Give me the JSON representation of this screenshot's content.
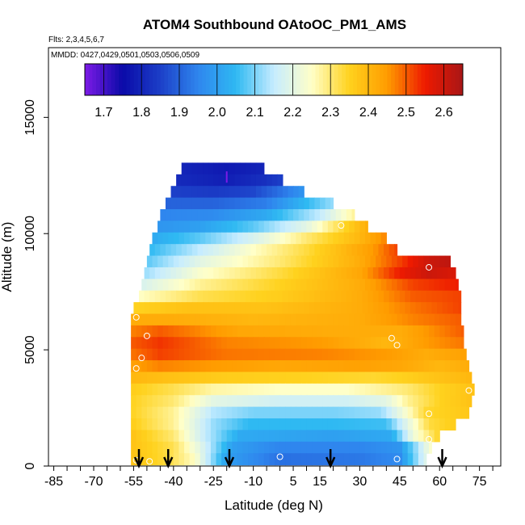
{
  "chart_data": {
    "type": "heatmap",
    "title": "ATOM4 Southbound OAtoOC_PM1_AMS",
    "flights_label": "Flts: 2,3,4,5,6,7",
    "dates_label": "MMDD: 0427,0429,0501,0503,0506,0509",
    "xlabel": "Latitude (deg N)",
    "ylabel": "Altitude (m)",
    "xlim": [
      -87,
      83
    ],
    "ylim": [
      0,
      18000
    ],
    "x_ticks": [
      -85,
      -70,
      -55,
      -40,
      -25,
      -10,
      5,
      15,
      30,
      45,
      60,
      75
    ],
    "x_tick_labels": [
      "-85",
      "-70",
      "-55",
      "-40",
      "-25",
      "-10",
      "5",
      "15",
      "30",
      "45",
      "60",
      "75"
    ],
    "y_ticks": [
      0,
      5000,
      10000,
      15000
    ],
    "y_tick_labels": [
      "0",
      "5000",
      "10000",
      "15000"
    ],
    "colorbar": {
      "min": 1.65,
      "max": 2.65,
      "ticks": [
        1.7,
        1.8,
        1.9,
        2.0,
        2.1,
        2.2,
        2.3,
        2.4,
        2.5,
        2.6
      ],
      "tick_labels": [
        "1.7",
        "1.8",
        "1.9",
        "2.0",
        "2.1",
        "2.2",
        "2.3",
        "2.4",
        "2.5",
        "2.6"
      ],
      "colors": [
        "#7d1be6",
        "#0a0aa8",
        "#1c3fc8",
        "#2f86ee",
        "#2fb9f2",
        "#c6ecff",
        "#ffffc8",
        "#ffd21e",
        "#ff9c00",
        "#ee1a00",
        "#a81616"
      ]
    },
    "rows": [
      {
        "alt": 12800,
        "lat_range": [
          -37,
          -6
        ],
        "values": [
          [
            -37,
            1.8
          ],
          [
            -20,
            1.78
          ],
          [
            -6,
            1.8
          ]
        ]
      },
      {
        "alt": 12300,
        "lat_range": [
          -39,
          1
        ],
        "values": [
          [
            -39,
            1.81
          ],
          [
            -20,
            1.79
          ],
          [
            -6,
            1.82
          ],
          [
            1,
            1.85
          ]
        ]
      },
      {
        "alt": 11800,
        "lat_range": [
          -41,
          9
        ],
        "values": [
          [
            -41,
            1.85
          ],
          [
            -25,
            1.84
          ],
          [
            -10,
            1.86
          ],
          [
            0,
            1.92
          ],
          [
            9,
            1.98
          ]
        ]
      },
      {
        "alt": 11300,
        "lat_range": [
          -43,
          20
        ],
        "values": [
          [
            -43,
            1.9
          ],
          [
            -25,
            1.9
          ],
          [
            -5,
            1.94
          ],
          [
            10,
            2.05
          ],
          [
            20,
            2.12
          ]
        ]
      },
      {
        "alt": 10800,
        "lat_range": [
          -45,
          28
        ],
        "values": [
          [
            -45,
            1.95
          ],
          [
            -25,
            1.96
          ],
          [
            -5,
            2.02
          ],
          [
            15,
            2.15
          ],
          [
            28,
            2.28
          ]
        ]
      },
      {
        "alt": 10300,
        "lat_range": [
          -46,
          33
        ],
        "values": [
          [
            -46,
            1.98
          ],
          [
            -30,
            2.0
          ],
          [
            -10,
            2.08
          ],
          [
            10,
            2.2
          ],
          [
            25,
            2.35
          ],
          [
            33,
            2.42
          ]
        ]
      },
      {
        "alt": 9800,
        "lat_range": [
          -48,
          40
        ],
        "values": [
          [
            -48,
            2.02
          ],
          [
            -30,
            2.08
          ],
          [
            -10,
            2.18
          ],
          [
            10,
            2.3
          ],
          [
            30,
            2.4
          ],
          [
            40,
            2.47
          ]
        ]
      },
      {
        "alt": 9300,
        "lat_range": [
          -49,
          44
        ],
        "values": [
          [
            -49,
            2.05
          ],
          [
            -30,
            2.15
          ],
          [
            -10,
            2.25
          ],
          [
            10,
            2.33
          ],
          [
            35,
            2.45
          ],
          [
            44,
            2.52
          ]
        ]
      },
      {
        "alt": 8800,
        "lat_range": [
          -50,
          64
        ],
        "values": [
          [
            -50,
            2.08
          ],
          [
            -30,
            2.2
          ],
          [
            0,
            2.3
          ],
          [
            30,
            2.42
          ],
          [
            45,
            2.52
          ],
          [
            56,
            2.6
          ],
          [
            64,
            2.62
          ]
        ]
      },
      {
        "alt": 8300,
        "lat_range": [
          -51,
          66
        ],
        "values": [
          [
            -51,
            2.12
          ],
          [
            -30,
            2.24
          ],
          [
            0,
            2.33
          ],
          [
            30,
            2.43
          ],
          [
            45,
            2.55
          ],
          [
            56,
            2.6
          ],
          [
            66,
            2.58
          ]
        ]
      },
      {
        "alt": 7800,
        "lat_range": [
          -52,
          67
        ],
        "values": [
          [
            -52,
            2.18
          ],
          [
            -30,
            2.28
          ],
          [
            0,
            2.35
          ],
          [
            30,
            2.42
          ],
          [
            50,
            2.52
          ],
          [
            67,
            2.55
          ]
        ]
      },
      {
        "alt": 7300,
        "lat_range": [
          -53,
          68
        ],
        "values": [
          [
            -53,
            2.25
          ],
          [
            -30,
            2.32
          ],
          [
            0,
            2.36
          ],
          [
            30,
            2.42
          ],
          [
            50,
            2.5
          ],
          [
            68,
            2.52
          ]
        ]
      },
      {
        "alt": 6800,
        "lat_range": [
          -55,
          68
        ],
        "values": [
          [
            -55,
            2.35
          ],
          [
            -35,
            2.38
          ],
          [
            -5,
            2.38
          ],
          [
            30,
            2.42
          ],
          [
            50,
            2.48
          ],
          [
            68,
            2.52
          ]
        ]
      },
      {
        "alt": 6300,
        "lat_range": [
          -56,
          68
        ],
        "values": [
          [
            -56,
            2.42
          ],
          [
            -40,
            2.42
          ],
          [
            -10,
            2.4
          ],
          [
            30,
            2.42
          ],
          [
            50,
            2.47
          ],
          [
            68,
            2.5
          ]
        ]
      },
      {
        "alt": 5800,
        "lat_range": [
          -56,
          69
        ],
        "values": [
          [
            -56,
            2.47
          ],
          [
            -45,
            2.5
          ],
          [
            -15,
            2.43
          ],
          [
            20,
            2.42
          ],
          [
            45,
            2.42
          ],
          [
            60,
            2.47
          ],
          [
            69,
            2.5
          ]
        ]
      },
      {
        "alt": 5300,
        "lat_range": [
          -56,
          69
        ],
        "values": [
          [
            -56,
            2.5
          ],
          [
            -45,
            2.53
          ],
          [
            -20,
            2.47
          ],
          [
            15,
            2.45
          ],
          [
            40,
            2.4
          ],
          [
            55,
            2.45
          ],
          [
            69,
            2.48
          ]
        ]
      },
      {
        "alt": 4800,
        "lat_range": [
          -56,
          70
        ],
        "values": [
          [
            -56,
            2.48
          ],
          [
            -45,
            2.52
          ],
          [
            -20,
            2.48
          ],
          [
            15,
            2.47
          ],
          [
            40,
            2.45
          ],
          [
            55,
            2.42
          ],
          [
            70,
            2.44
          ]
        ]
      },
      {
        "alt": 4300,
        "lat_range": [
          -56,
          71
        ],
        "values": [
          [
            -56,
            2.44
          ],
          [
            -45,
            2.47
          ],
          [
            -25,
            2.45
          ],
          [
            0,
            2.43
          ],
          [
            30,
            2.44
          ],
          [
            45,
            2.43
          ],
          [
            60,
            2.4
          ],
          [
            71,
            2.42
          ]
        ]
      },
      {
        "alt": 3800,
        "lat_range": [
          -56,
          72
        ],
        "values": [
          [
            -56,
            2.4
          ],
          [
            -40,
            2.38
          ],
          [
            -20,
            2.36
          ],
          [
            10,
            2.35
          ],
          [
            35,
            2.34
          ],
          [
            45,
            2.35
          ],
          [
            60,
            2.38
          ],
          [
            72,
            2.4
          ]
        ]
      },
      {
        "alt": 3300,
        "lat_range": [
          -56,
          73
        ],
        "values": [
          [
            -56,
            2.36
          ],
          [
            -40,
            2.32
          ],
          [
            -25,
            2.27
          ],
          [
            0,
            2.25
          ],
          [
            25,
            2.25
          ],
          [
            40,
            2.28
          ],
          [
            48,
            2.3
          ],
          [
            60,
            2.35
          ],
          [
            73,
            2.38
          ]
        ]
      },
      {
        "alt": 2800,
        "lat_range": [
          -56,
          72
        ],
        "values": [
          [
            -56,
            2.35
          ],
          [
            -40,
            2.3
          ],
          [
            -25,
            2.2
          ],
          [
            0,
            2.17
          ],
          [
            25,
            2.17
          ],
          [
            40,
            2.2
          ],
          [
            48,
            2.28
          ],
          [
            60,
            2.35
          ],
          [
            72,
            2.38
          ]
        ]
      },
      {
        "alt": 2300,
        "lat_range": [
          -56,
          71
        ],
        "values": [
          [
            -56,
            2.35
          ],
          [
            -40,
            2.28
          ],
          [
            -25,
            2.14
          ],
          [
            -10,
            2.1
          ],
          [
            20,
            2.1
          ],
          [
            38,
            2.12
          ],
          [
            46,
            2.22
          ],
          [
            55,
            2.34
          ],
          [
            71,
            2.37
          ]
        ]
      },
      {
        "alt": 1800,
        "lat_range": [
          -56,
          66
        ],
        "values": [
          [
            -56,
            2.36
          ],
          [
            -40,
            2.28
          ],
          [
            -25,
            2.12
          ],
          [
            -12,
            2.05
          ],
          [
            20,
            2.05
          ],
          [
            40,
            2.06
          ],
          [
            48,
            2.2
          ],
          [
            56,
            2.33
          ],
          [
            66,
            2.36
          ]
        ]
      },
      {
        "alt": 1300,
        "lat_range": [
          -56,
          60
        ],
        "values": [
          [
            -56,
            2.38
          ],
          [
            -40,
            2.3
          ],
          [
            -28,
            2.15
          ],
          [
            -15,
            2.02
          ],
          [
            20,
            2.0
          ],
          [
            42,
            2.02
          ],
          [
            50,
            2.22
          ],
          [
            60,
            2.35
          ]
        ]
      },
      {
        "alt": 800,
        "lat_range": [
          -56,
          57
        ],
        "values": [
          [
            -56,
            2.38
          ],
          [
            -40,
            2.32
          ],
          [
            -30,
            2.2
          ],
          [
            -18,
            2.0
          ],
          [
            0,
            1.95
          ],
          [
            30,
            1.95
          ],
          [
            45,
            1.98
          ],
          [
            57,
            2.25
          ]
        ]
      },
      {
        "alt": 300,
        "lat_range": [
          -56,
          55
        ],
        "values": [
          [
            -56,
            2.38
          ],
          [
            -42,
            2.33
          ],
          [
            -32,
            2.25
          ],
          [
            -20,
            2.0
          ],
          [
            0,
            1.92
          ],
          [
            30,
            1.93
          ],
          [
            45,
            1.96
          ],
          [
            55,
            2.2
          ]
        ]
      }
    ],
    "arrow_latitudes": [
      -53,
      -42,
      -19,
      19,
      61
    ],
    "circle_markers": [
      {
        "lat": -54,
        "alt": 6400
      },
      {
        "lat": -50,
        "alt": 5600
      },
      {
        "lat": -52,
        "alt": 4650
      },
      {
        "lat": -54,
        "alt": 4200
      },
      {
        "lat": 23,
        "alt": 10350
      },
      {
        "lat": 56,
        "alt": 8550
      },
      {
        "lat": 42,
        "alt": 5500
      },
      {
        "lat": 44,
        "alt": 5200
      },
      {
        "lat": 71,
        "alt": 3250
      },
      {
        "lat": 56,
        "alt": 2250
      },
      {
        "lat": 0,
        "alt": 400
      },
      {
        "lat": 44,
        "alt": 300
      },
      {
        "lat": -54,
        "alt": 250
      },
      {
        "lat": -49,
        "alt": 200
      },
      {
        "lat": 56,
        "alt": 1150
      }
    ],
    "marker_top": {
      "lat": -20,
      "alt": 12400
    },
    "grid": false,
    "legend": "top colorbar"
  }
}
